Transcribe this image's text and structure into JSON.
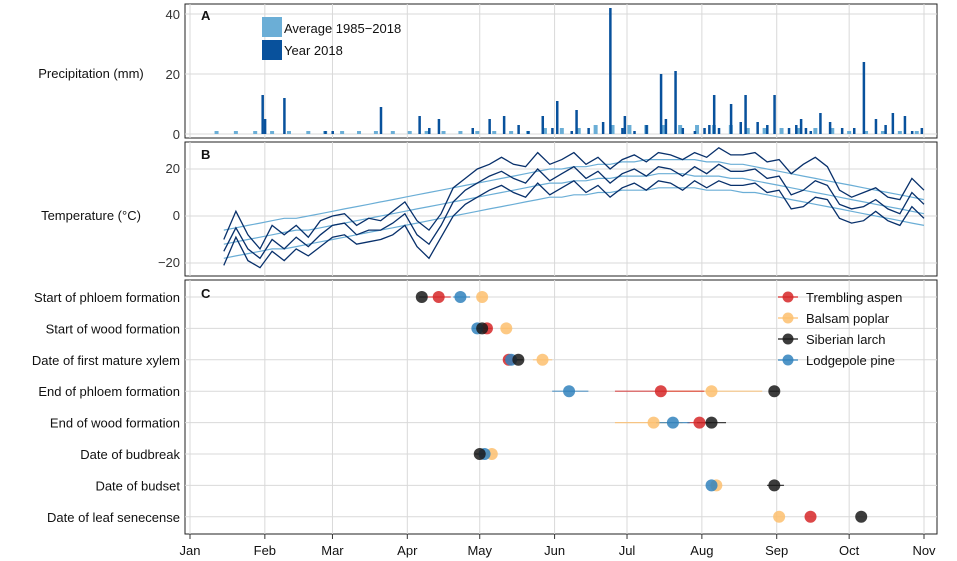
{
  "colors": {
    "precip_avg": "#6baed6",
    "precip_2018": "#08519c",
    "temp_avg": "#6baed6",
    "temp_2018": "#08306b",
    "trembling_aspen": "#d62728",
    "balsam_poplar": "#fdbf6f",
    "siberian_larch": "#1a1a1a",
    "lodgepole_pine": "#3182bd",
    "grid": "#d9d9d9"
  },
  "chart_data": [
    {
      "panel": "A",
      "type": "bar",
      "ylabel": "Precipitation (mm)",
      "ylim": [
        0,
        42
      ],
      "yticks": [
        0,
        20,
        40
      ],
      "x_unit": "day of year",
      "legend": [
        "Average 1985–2018",
        "Year 2018"
      ],
      "legend_position": "top-left",
      "series": [
        {
          "name": "Average 1985–2018",
          "x": [
            12,
            20,
            28,
            35,
            42,
            50,
            57,
            64,
            71,
            78,
            85,
            92,
            99,
            106,
            113,
            120,
            127,
            134,
            141,
            148,
            155,
            162,
            169,
            176,
            183,
            190,
            197,
            204,
            211,
            218,
            225,
            232,
            239,
            246,
            253,
            260,
            267,
            274,
            281,
            288,
            295,
            302
          ],
          "values": [
            1,
            1,
            1,
            1,
            1,
            1,
            1,
            1,
            1,
            1,
            1,
            1,
            1,
            1,
            1,
            1,
            1,
            1,
            1,
            2,
            2,
            2,
            3,
            3,
            3,
            3,
            3,
            3,
            3,
            3,
            3,
            2,
            2,
            2,
            2,
            2,
            2,
            1,
            1,
            1,
            1,
            1
          ]
        },
        {
          "name": "Year 2018",
          "x": [
            31,
            32,
            40,
            57,
            60,
            80,
            96,
            100,
            104,
            118,
            125,
            131,
            137,
            141,
            147,
            151,
            153,
            159,
            161,
            166,
            172,
            175,
            180,
            181,
            185,
            190,
            196,
            198,
            202,
            205,
            210,
            214,
            216,
            218,
            220,
            225,
            229,
            231,
            236,
            240,
            243,
            249,
            252,
            254,
            256,
            258,
            262,
            266,
            271,
            276,
            280,
            285,
            289,
            292,
            297,
            300,
            304
          ],
          "values": [
            13,
            5,
            12,
            1,
            1,
            9,
            6,
            2,
            5,
            2,
            5,
            6,
            3,
            1,
            6,
            2,
            11,
            1,
            8,
            2,
            4,
            42,
            2,
            6,
            1,
            3,
            20,
            5,
            21,
            2,
            1,
            2,
            3,
            13,
            2,
            10,
            4,
            13,
            4,
            3,
            13,
            2,
            3,
            5,
            2,
            1,
            7,
            4,
            2,
            2,
            24,
            5,
            3,
            7,
            6,
            1,
            2
          ]
        }
      ]
    },
    {
      "panel": "B",
      "type": "line",
      "ylabel": "Temperature (°C)",
      "ylim": [
        -25,
        32
      ],
      "yticks": [
        -20,
        0,
        20
      ],
      "x_unit": "day of year",
      "x": [
        15,
        20,
        25,
        30,
        35,
        40,
        45,
        50,
        55,
        60,
        65,
        70,
        75,
        80,
        85,
        90,
        95,
        100,
        105,
        110,
        115,
        120,
        125,
        130,
        135,
        140,
        145,
        150,
        155,
        160,
        165,
        170,
        175,
        180,
        185,
        190,
        195,
        200,
        205,
        210,
        215,
        220,
        225,
        230,
        235,
        240,
        245,
        250,
        255,
        260,
        265,
        270,
        275,
        280,
        285,
        290,
        295,
        300,
        305
      ],
      "series": [
        {
          "name": "Average 1985–2018 max",
          "values": [
            -6,
            -5,
            -4,
            -3,
            -2,
            -1,
            -1,
            0,
            1,
            2,
            3,
            4,
            5,
            6,
            7,
            8,
            9,
            10,
            11,
            12,
            13,
            14,
            15,
            16,
            17,
            18,
            19,
            20,
            20,
            21,
            21,
            22,
            22,
            23,
            23,
            24,
            24,
            24,
            24,
            24,
            23,
            23,
            22,
            22,
            21,
            20,
            19,
            18,
            17,
            16,
            15,
            14,
            13,
            12,
            11,
            10,
            9,
            8,
            7
          ]
        },
        {
          "name": "Average 1985–2018 mean",
          "values": [
            -12,
            -11,
            -10,
            -9,
            -8,
            -7,
            -6,
            -6,
            -5,
            -4,
            -3,
            -2,
            -1,
            0,
            1,
            2,
            3,
            4,
            5,
            6,
            7,
            8,
            9,
            10,
            11,
            12,
            13,
            14,
            14,
            15,
            15,
            16,
            16,
            17,
            17,
            17,
            18,
            18,
            18,
            17,
            17,
            17,
            16,
            16,
            15,
            14,
            13,
            12,
            11,
            10,
            9,
            8,
            7,
            6,
            5,
            4,
            3,
            2,
            1
          ]
        },
        {
          "name": "Average 1985–2018 min",
          "values": [
            -18,
            -17,
            -16,
            -15,
            -14,
            -14,
            -13,
            -12,
            -11,
            -10,
            -9,
            -8,
            -7,
            -6,
            -5,
            -4,
            -3,
            -2,
            -1,
            0,
            1,
            2,
            3,
            4,
            5,
            6,
            7,
            8,
            8,
            9,
            9,
            10,
            10,
            11,
            11,
            11,
            12,
            12,
            12,
            12,
            11,
            11,
            11,
            10,
            10,
            9,
            8,
            7,
            6,
            5,
            4,
            3,
            2,
            1,
            0,
            -1,
            -2,
            -3,
            -4
          ]
        },
        {
          "name": "Year 2018 max",
          "values": [
            -10,
            2,
            -8,
            -14,
            -4,
            -8,
            -4,
            -9,
            -2,
            0,
            1,
            -4,
            -1,
            -2,
            2,
            6,
            -2,
            -6,
            1,
            12,
            16,
            20,
            22,
            25,
            22,
            21,
            27,
            22,
            24,
            27,
            22,
            25,
            20,
            24,
            26,
            23,
            27,
            26,
            24,
            27,
            25,
            29,
            26,
            26,
            27,
            23,
            24,
            18,
            22,
            25,
            21,
            11,
            8,
            10,
            12,
            8,
            7,
            16,
            11
          ]
        },
        {
          "name": "Year 2018 mean",
          "values": [
            -15,
            -5,
            -14,
            -18,
            -10,
            -14,
            -9,
            -13,
            -8,
            -4,
            -3,
            -8,
            -6,
            -6,
            -3,
            1,
            -8,
            -12,
            -4,
            6,
            11,
            14,
            17,
            19,
            16,
            14,
            20,
            15,
            18,
            21,
            16,
            19,
            14,
            18,
            20,
            17,
            21,
            20,
            17,
            21,
            18,
            22,
            19,
            19,
            20,
            16,
            17,
            9,
            11,
            15,
            13,
            5,
            3,
            4,
            7,
            3,
            1,
            10,
            5
          ]
        },
        {
          "name": "Year 2018 min",
          "values": [
            -21,
            -9,
            -19,
            -22,
            -15,
            -19,
            -14,
            -17,
            -13,
            -9,
            -8,
            -12,
            -11,
            -10,
            -8,
            -4,
            -13,
            -18,
            -9,
            0,
            5,
            8,
            11,
            13,
            10,
            8,
            14,
            9,
            12,
            15,
            10,
            13,
            8,
            12,
            14,
            11,
            15,
            14,
            11,
            15,
            12,
            15,
            13,
            13,
            14,
            10,
            11,
            3,
            4,
            8,
            7,
            -1,
            -3,
            -2,
            2,
            -2,
            -4,
            4,
            -1
          ]
        }
      ]
    },
    {
      "panel": "C",
      "type": "scatter",
      "x_unit": "day of year",
      "categories": [
        "Start of phloem formation",
        "Start of wood formation",
        "Date of first mature xylem",
        "End of phloem formation",
        "End of wood formation",
        "Date of budbreak",
        "Date of budset",
        "Date of leaf senecense"
      ],
      "legend_position": "top-right",
      "series": [
        {
          "name": "Trembling aspen",
          "points": [
            [
              104,
              0
            ],
            [
              124,
              1
            ],
            [
              133,
              2
            ],
            [
              196,
              3
            ],
            [
              212,
              4
            ],
            [
              258,
              7
            ]
          ],
          "ranges": [
            [
              99,
              109
            ],
            [
              122,
              126
            ],
            [
              131,
              136
            ],
            [
              177,
              214
            ],
            [
              207,
              217
            ]
          ]
        },
        {
          "name": "Balsam poplar",
          "points": [
            [
              122,
              0
            ],
            [
              132,
              1
            ],
            [
              147,
              2
            ],
            [
              217,
              3
            ],
            [
              193,
              4
            ],
            [
              126,
              5
            ],
            [
              219,
              6
            ],
            [
              245,
              7
            ]
          ],
          "ranges": [
            [
              120,
              124
            ],
            [
              130,
              134
            ],
            [
              143,
              151
            ],
            [
              196,
              238
            ],
            [
              177,
              205
            ]
          ]
        },
        {
          "name": "Siberian larch",
          "points": [
            [
              97,
              0
            ],
            [
              122,
              1
            ],
            [
              137,
              2
            ],
            [
              243,
              3
            ],
            [
              217,
              4
            ],
            [
              121,
              5
            ],
            [
              243,
              6
            ],
            [
              279,
              7
            ]
          ],
          "ranges": [
            [
              96,
              99
            ],
            [
              120,
              124
            ],
            [
              135,
              139
            ],
            [
              241,
              245
            ],
            [
              211,
              223
            ],
            [
              119,
              123
            ],
            [
              240,
              247
            ]
          ]
        },
        {
          "name": "Lodgepole pine",
          "points": [
            [
              113,
              0
            ],
            [
              120,
              1
            ],
            [
              134,
              2
            ],
            [
              158,
              3
            ],
            [
              201,
              4
            ],
            [
              123,
              5
            ],
            [
              217,
              6
            ]
          ],
          "ranges": [
            [
              110,
              117
            ],
            [
              118,
              122
            ],
            [
              131,
              137
            ],
            [
              151,
              166
            ],
            [
              194,
              208
            ]
          ]
        }
      ]
    }
  ],
  "panels": {
    "a_label": "A",
    "b_label": "B",
    "c_label": "C",
    "a_ylabel": "Precipitation (mm)",
    "b_ylabel": "Temperature (°C)",
    "legend_a": [
      "Average 1985−2018",
      "Year 2018"
    ],
    "ticks_a": [
      "0",
      "20",
      "40"
    ],
    "ticks_b": [
      "−20",
      "0",
      "20"
    ]
  },
  "x_axis": {
    "labels": [
      "Jan",
      "Feb",
      "Mar",
      "Apr",
      "May",
      "Jun",
      "Jul",
      "Aug",
      "Sep",
      "Oct",
      "Nov"
    ],
    "doy": [
      1,
      32,
      60,
      91,
      121,
      152,
      182,
      213,
      244,
      274,
      305
    ]
  }
}
